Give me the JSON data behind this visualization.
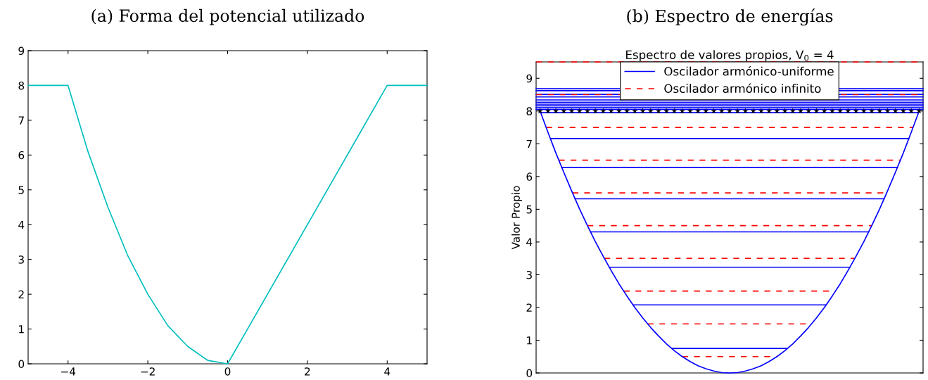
{
  "chart_data": [
    {
      "type": "line",
      "title": "(a) Forma del potencial utilizado",
      "xlim": [
        -5,
        5
      ],
      "ylim": [
        0,
        9
      ],
      "xticks": [
        {
          "value": -4,
          "label": "−4"
        },
        {
          "value": -2,
          "label": "−2"
        },
        0,
        2,
        4
      ],
      "yticks": [
        0,
        1,
        2,
        3,
        4,
        5,
        6,
        7,
        8,
        9
      ],
      "grid": false,
      "legend": false,
      "series": [
        {
          "color": "#00bfbf",
          "x": [
            -5,
            -4,
            -3.5,
            -3,
            -2.5,
            -2,
            -1.5,
            -1,
            -0.5,
            0,
            4,
            5
          ],
          "values": [
            8,
            8,
            6.1,
            4.5,
            3.1,
            2,
            1.1,
            0.5,
            0.1,
            0,
            8,
            8
          ]
        }
      ]
    },
    {
      "type": "line",
      "title": "(b) Espectro de energías",
      "subtitle": "Espectro de valores propios, V$_{0}$ = 4",
      "ylabel": "Valor Propio",
      "categories": [
        null,
        null,
        null,
        null,
        null,
        null,
        null,
        null,
        null,
        null,
        null,
        null,
        null,
        null,
        null,
        null,
        null,
        null,
        null,
        null,
        null,
        null,
        null,
        null,
        null,
        null,
        null,
        null,
        null,
        null,
        null,
        null,
        null,
        null,
        null,
        null,
        null,
        null,
        null,
        null,
        null,
        null,
        null,
        null,
        null,
        null,
        null,
        null,
        null
      ],
      "ylim": [
        0,
        9.5
      ],
      "yticks": [
        0,
        1,
        2,
        3,
        4,
        5,
        6,
        7,
        8,
        9
      ],
      "tick_labels": "y",
      "grid": false,
      "legend": "top",
      "series": [
        {
          "color": "#0000ff",
          "line_style": "solid",
          "values": [
            8.0,
            7.35,
            6.72,
            6.13,
            5.56,
            5.01,
            4.5,
            4.01,
            3.56,
            3.13,
            2.72,
            2.35,
            2.0,
            1.68,
            1.39,
            1.13,
            0.89,
            0.68,
            0.5,
            0.35,
            0.22,
            0.13,
            0.06,
            0.01,
            0,
            0.01,
            0.06,
            0.13,
            0.22,
            0.35,
            0.5,
            0.68,
            0.89,
            1.13,
            1.39,
            1.68,
            2.0,
            2.35,
            2.72,
            3.13,
            3.56,
            4.01,
            4.5,
            5.01,
            5.56,
            6.13,
            6.72,
            7.35,
            8.0
          ]
        },
        {
          "type": "scatter",
          "color": "#000000",
          "marker": "star",
          "values": [
            8,
            8,
            8,
            8,
            8,
            8,
            8,
            8,
            8,
            8,
            8,
            8,
            8,
            8,
            8,
            8,
            8,
            8,
            8,
            8,
            8,
            8,
            8,
            8,
            8,
            8,
            8,
            8,
            8,
            8,
            8,
            8,
            8,
            8,
            8,
            8,
            8,
            8,
            8,
            8,
            8,
            8,
            8,
            8,
            8,
            8,
            8,
            8,
            8
          ]
        }
      ],
      "ref_lines": [
        {
          "axis": "y",
          "value": 0.75,
          "color": "#0000ff",
          "line_style": "solid",
          "label": "Oscilador armónico-uniforme"
        },
        {
          "axis": "y",
          "value": 2.08,
          "color": "#0000ff",
          "line_style": "solid"
        },
        {
          "axis": "y",
          "value": 3.23,
          "color": "#0000ff",
          "line_style": "solid"
        },
        {
          "axis": "y",
          "value": 4.31,
          "color": "#0000ff",
          "line_style": "solid"
        },
        {
          "axis": "y",
          "value": 5.32,
          "color": "#0000ff",
          "line_style": "solid"
        },
        {
          "axis": "y",
          "value": 6.28,
          "color": "#0000ff",
          "line_style": "solid"
        },
        {
          "axis": "y",
          "value": 7.16,
          "color": "#0000ff",
          "line_style": "solid"
        },
        {
          "axis": "y",
          "value": 7.95,
          "color": "#0000ff",
          "line_style": "solid"
        },
        {
          "axis": "y",
          "value": 8.05,
          "color": "#0000ff",
          "line_style": "solid"
        },
        {
          "axis": "y",
          "value": 8.1,
          "color": "#0000ff",
          "line_style": "solid"
        },
        {
          "axis": "y",
          "value": 8.16,
          "color": "#0000ff",
          "line_style": "solid"
        },
        {
          "axis": "y",
          "value": 8.21,
          "color": "#0000ff",
          "line_style": "solid"
        },
        {
          "axis": "y",
          "value": 8.27,
          "color": "#0000ff",
          "line_style": "solid"
        },
        {
          "axis": "y",
          "value": 8.34,
          "color": "#0000ff",
          "line_style": "solid"
        },
        {
          "axis": "y",
          "value": 8.43,
          "color": "#0000ff",
          "line_style": "solid"
        },
        {
          "axis": "y",
          "value": 8.51,
          "color": "#0000ff",
          "line_style": "solid"
        },
        {
          "axis": "y",
          "value": 8.62,
          "color": "#0000ff",
          "line_style": "solid"
        },
        {
          "axis": "y",
          "value": 8.68,
          "color": "#0000ff",
          "line_style": "solid"
        },
        {
          "axis": "y",
          "value": 0.5,
          "color": "#ff0000",
          "line_style": "dashed",
          "label": "Oscilador armónico infinito"
        },
        {
          "axis": "y",
          "value": 1.5,
          "color": "#ff0000",
          "line_style": "dashed"
        },
        {
          "axis": "y",
          "value": 2.5,
          "color": "#ff0000",
          "line_style": "dashed"
        },
        {
          "axis": "y",
          "value": 3.5,
          "color": "#ff0000",
          "line_style": "dashed"
        },
        {
          "axis": "y",
          "value": 4.5,
          "color": "#ff0000",
          "line_style": "dashed"
        },
        {
          "axis": "y",
          "value": 5.5,
          "color": "#ff0000",
          "line_style": "dashed"
        },
        {
          "axis": "y",
          "value": 6.5,
          "color": "#ff0000",
          "line_style": "dashed"
        },
        {
          "axis": "y",
          "value": 7.5,
          "color": "#ff0000",
          "line_style": "dashed"
        },
        {
          "axis": "y",
          "value": 8.5,
          "color": "#ff0000",
          "line_style": "dashed"
        },
        {
          "axis": "y",
          "value": 9.5,
          "color": "#ff0000",
          "line_style": "dashed"
        }
      ]
    }
  ]
}
